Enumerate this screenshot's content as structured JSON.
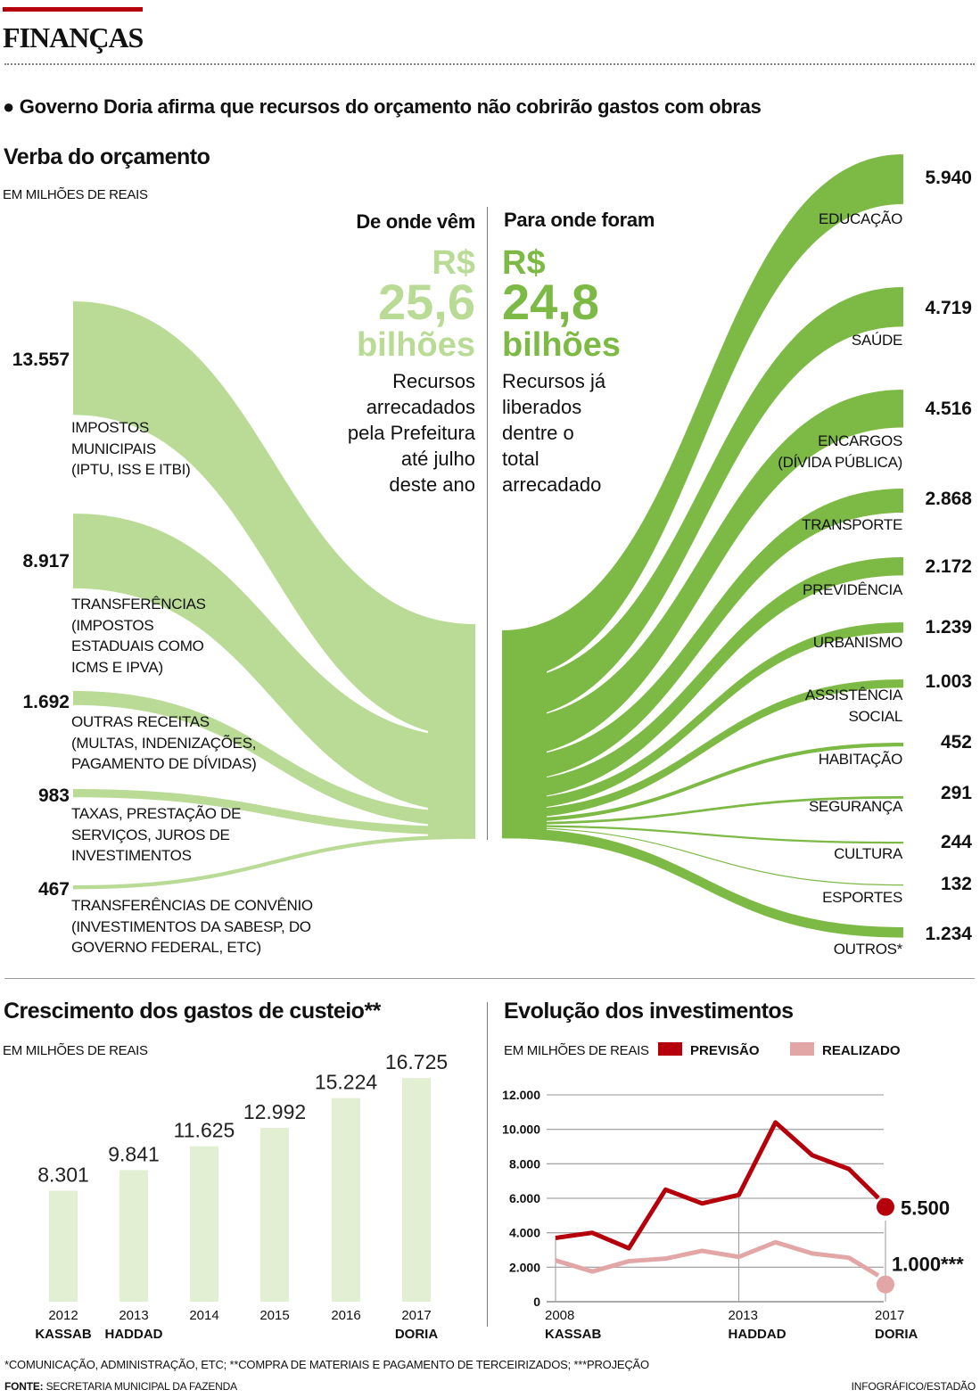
{
  "header": {
    "section": "FINANÇAS",
    "subtitle": "● Governo Doria afirma que recursos do orçamento não cobrirão gastos com obras"
  },
  "colors": {
    "accent": "#b5000c",
    "source_green": "#badb96",
    "destination_green": "#7dba45",
    "bar_green": "#e2efd2",
    "previsao": "#b5000c",
    "realizado": "#e3a6a6"
  },
  "sankey": {
    "title": "Verba do orçamento",
    "unit": "EM MILHÕES DE REAIS",
    "left_heading": "De onde vêm",
    "left_currency": "R$",
    "left_amount": "25,6",
    "left_scale": "bilhões",
    "left_desc": [
      "Recursos",
      "arrecadados",
      "pela Prefeitura",
      "até julho",
      "deste ano"
    ],
    "right_heading": "Para onde foram",
    "right_currency": "R$",
    "right_amount": "24,8",
    "right_scale": "bilhões",
    "right_desc": [
      "Recursos já",
      "liberados",
      "dentre o",
      "total",
      "arrecadado"
    ]
  },
  "bars": {
    "title": "Crescimento dos gastos de custeio**",
    "unit": "EM MILHÕES DE REAIS"
  },
  "lines": {
    "title": "Evolução dos investimentos",
    "unit": "EM MILHÕES DE REAIS"
  },
  "footer": {
    "note": "*COMUNICAÇÃO, ADMINISTRAÇÃO, ETC; **COMPRA DE MATERIAIS E PAGAMENTO DE TERCEIRIZADOS; ***PROJEÇÃO",
    "source_label": "FONTE:",
    "source": "SECRETARIA MUNICIPAL DA FAZENDA",
    "credit": "INFOGRÁFICO/ESTADÃO"
  },
  "chart_data": [
    {
      "type": "sankey",
      "unit": "EM MILHÕES DE REAIS",
      "sources": [
        {
          "value": 13557,
          "value_label": "13.557",
          "label": [
            "IMPOSTOS",
            "MUNICIPAIS",
            "(IPTU, ISS E ITBI)"
          ]
        },
        {
          "value": 8917,
          "value_label": "8.917",
          "label": [
            "TRANSFERÊNCIAS",
            "(IMPOSTOS",
            "ESTADUAIS COMO",
            "ICMS E IPVA)"
          ]
        },
        {
          "value": 1692,
          "value_label": "1.692",
          "label": [
            "OUTRAS RECEITAS",
            "(MULTAS, INDENIZAÇÕES,",
            "PAGAMENTO DE DÍVIDAS)"
          ]
        },
        {
          "value": 983,
          "value_label": "983",
          "label": [
            "TAXAS, PRESTAÇÃO DE",
            "SERVIÇOS, JUROS DE",
            "INVESTIMENTOS"
          ]
        },
        {
          "value": 467,
          "value_label": "467",
          "label": [
            "TRANSFERÊNCIAS DE CONVÊNIO",
            "(INVESTIMENTOS DA SABESP, DO",
            "GOVERNO FEDERAL, ETC)"
          ]
        }
      ],
      "destinations": [
        {
          "value": 5940,
          "value_label": "5.940",
          "label": [
            "EDUCAÇÃO"
          ]
        },
        {
          "value": 4719,
          "value_label": "4.719",
          "label": [
            "SAÚDE"
          ]
        },
        {
          "value": 4516,
          "value_label": "4.516",
          "label": [
            "ENCARGOS",
            "(DÍVIDA PÚBLICA)"
          ]
        },
        {
          "value": 2868,
          "value_label": "2.868",
          "label": [
            "TRANSPORTE"
          ]
        },
        {
          "value": 2172,
          "value_label": "2.172",
          "label": [
            "PREVIDÊNCIA"
          ]
        },
        {
          "value": 1239,
          "value_label": "1.239",
          "label": [
            "URBANISMO"
          ]
        },
        {
          "value": 1003,
          "value_label": "1.003",
          "label": [
            "ASSISTÊNCIA",
            "SOCIAL"
          ]
        },
        {
          "value": 452,
          "value_label": "452",
          "label": [
            "HABITAÇÃO"
          ]
        },
        {
          "value": 291,
          "value_label": "291",
          "label": [
            "SEGURANÇA"
          ]
        },
        {
          "value": 244,
          "value_label": "244",
          "label": [
            "CULTURA"
          ]
        },
        {
          "value": 132,
          "value_label": "132",
          "label": [
            "ESPORTES"
          ]
        },
        {
          "value": 1234,
          "value_label": "1.234",
          "label": [
            "OUTROS*"
          ]
        }
      ]
    },
    {
      "type": "bar",
      "title": "Crescimento dos gastos de custeio**",
      "unit": "EM MILHÕES DE REAIS",
      "categories": [
        "2012",
        "2013",
        "2014",
        "2015",
        "2016",
        "2017"
      ],
      "category_sublabels": [
        "KASSAB",
        "HADDAD",
        "",
        "",
        "",
        "DORIA"
      ],
      "values": [
        8301,
        9841,
        11625,
        12992,
        15224,
        16725
      ],
      "value_labels": [
        "8.301",
        "9.841",
        "11.625",
        "12.992",
        "15.224",
        "16.725"
      ],
      "ylim": [
        0,
        17000
      ],
      "grid": false
    },
    {
      "type": "line",
      "title": "Evolução dos investimentos",
      "unit": "EM MILHÕES DE REAIS",
      "x": [
        2008,
        2009,
        2010,
        2011,
        2012,
        2013,
        2014,
        2015,
        2016,
        2017
      ],
      "x_tick_labels": [
        {
          "year": "2008",
          "name": "KASSAB",
          "x": 2008
        },
        {
          "year": "2013",
          "name": "HADDAD",
          "x": 2013
        },
        {
          "year": "2017",
          "name": "DORIA",
          "x": 2017
        }
      ],
      "y_ticks": [
        0,
        2000,
        4000,
        6000,
        8000,
        10000,
        12000
      ],
      "y_tick_labels": [
        "0",
        "2.000",
        "4.000",
        "6.000",
        "8.000",
        "10.000",
        "12.000"
      ],
      "ylim": [
        0,
        12000
      ],
      "grid": true,
      "legend": "top",
      "series": [
        {
          "name": "PREVISÃO",
          "color": "#b5000c",
          "values": [
            3700,
            4000,
            3100,
            6500,
            5700,
            6200,
            10400,
            8500,
            7700,
            5500
          ],
          "end_label": "5.500"
        },
        {
          "name": "REALIZADO",
          "color": "#e3a6a6",
          "values": [
            2400,
            1750,
            2350,
            2500,
            2950,
            2600,
            3450,
            2800,
            2550,
            1000
          ],
          "end_label": "1.000***"
        }
      ]
    }
  ]
}
